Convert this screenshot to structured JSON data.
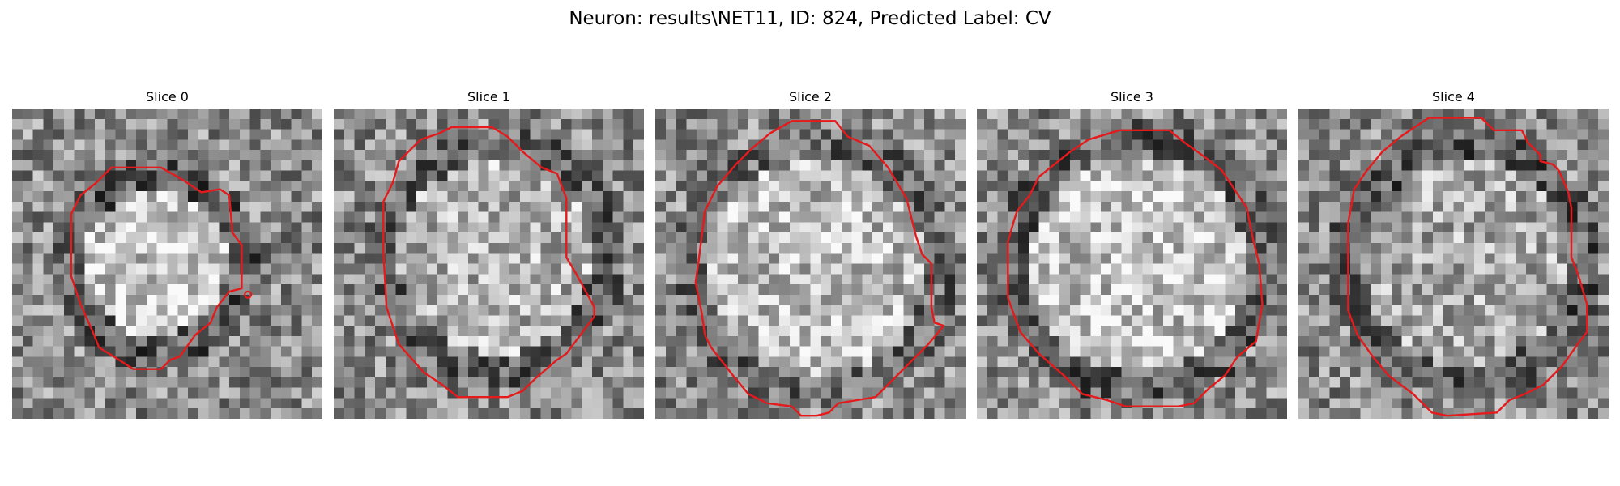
{
  "figure": {
    "title": "Neuron: results\\NET11, ID: 824, Predicted Label: CV"
  },
  "colors": {
    "contour": "#e41a1c",
    "background": "#ffffff"
  },
  "panels": [
    {
      "title": "Slice 0",
      "image": "grayscale-em-patch",
      "contour": "red-segmentation-outline"
    },
    {
      "title": "Slice 1",
      "image": "grayscale-em-patch",
      "contour": "red-segmentation-outline"
    },
    {
      "title": "Slice 2",
      "image": "grayscale-em-patch",
      "contour": "red-segmentation-outline"
    },
    {
      "title": "Slice 3",
      "image": "grayscale-em-patch",
      "contour": "red-segmentation-outline"
    },
    {
      "title": "Slice 4",
      "image": "grayscale-em-patch",
      "contour": "red-segmentation-outline"
    }
  ]
}
